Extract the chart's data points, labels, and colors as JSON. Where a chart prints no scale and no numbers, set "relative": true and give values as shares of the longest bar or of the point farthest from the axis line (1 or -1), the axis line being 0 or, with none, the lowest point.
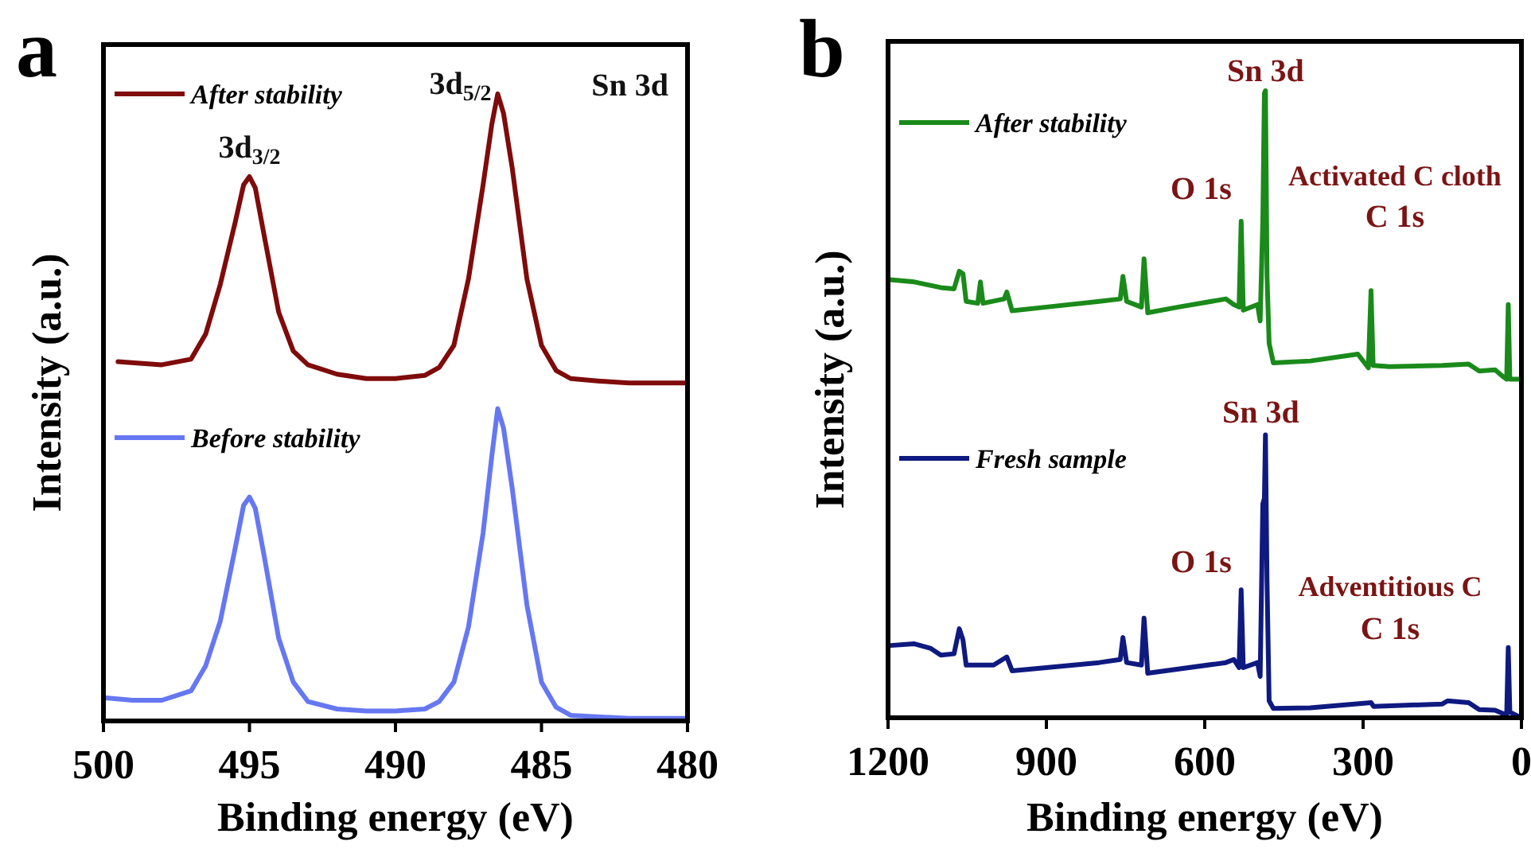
{
  "chart_data": [
    {
      "type": "line",
      "title": "a",
      "xlabel": "Binding energy (eV)",
      "ylabel": "Intensity (a.u.)",
      "relative": true,
      "legend": "left",
      "xlim": [
        500,
        480
      ],
      "xticks": [
        500,
        495,
        490,
        485,
        480
      ],
      "series": [
        {
          "name": "After stability",
          "color": "#7f0b0b",
          "x": [
            499.5,
            498,
            497,
            496.5,
            496,
            495.5,
            495.2,
            495,
            494.8,
            494.5,
            494,
            493.5,
            493,
            492,
            491,
            490,
            489,
            488.5,
            488,
            487.5,
            487,
            486.7,
            486.5,
            486.3,
            486,
            485.5,
            485,
            484.5,
            484,
            483,
            482,
            480
          ],
          "values": [
            0.573,
            0.568,
            0.577,
            0.617,
            0.696,
            0.793,
            0.855,
            0.868,
            0.85,
            0.775,
            0.652,
            0.59,
            0.568,
            0.553,
            0.546,
            0.546,
            0.551,
            0.564,
            0.599,
            0.705,
            0.855,
            0.952,
            1.0,
            0.969,
            0.881,
            0.705,
            0.599,
            0.559,
            0.546,
            0.542,
            0.539,
            0.539
          ]
        },
        {
          "name": "Before stability",
          "color": "#6677f2",
          "x": [
            500,
            499,
            498,
            497,
            496.5,
            496,
            495.5,
            495.2,
            495,
            494.8,
            494.5,
            494,
            493.5,
            493,
            492,
            491,
            490,
            489,
            488.5,
            488,
            487.5,
            487,
            486.7,
            486.5,
            486.3,
            486,
            485.5,
            485,
            484.5,
            484,
            482,
            480
          ],
          "values": [
            0.037,
            0.033,
            0.033,
            0.048,
            0.088,
            0.159,
            0.273,
            0.344,
            0.357,
            0.339,
            0.264,
            0.132,
            0.062,
            0.031,
            0.019,
            0.016,
            0.016,
            0.019,
            0.031,
            0.062,
            0.15,
            0.3,
            0.423,
            0.498,
            0.467,
            0.37,
            0.185,
            0.062,
            0.022,
            0.009,
            0.004,
            0.004
          ]
        }
      ],
      "annotations": [
        {
          "text": "3d$_{3/2}$",
          "x": 495,
          "y": 0.868
        },
        {
          "text": "3d$_{5/2}$",
          "x": 486.5,
          "y": 1.0
        },
        "Sn 3d"
      ]
    },
    {
      "type": "line",
      "title": "b",
      "xlabel": "Binding energy (eV)",
      "ylabel": "Intensity (a.u.)",
      "relative": true,
      "legend": "left",
      "xlim": [
        1200,
        0
      ],
      "xticks": [
        1200,
        900,
        600,
        300,
        0
      ],
      "series": [
        {
          "name": "After stability",
          "color": "#1a8a1a",
          "x": [
            1200,
            1150,
            1100,
            1075,
            1065,
            1058,
            1052,
            1030,
            1025,
            1020,
            980,
            975,
            965,
            900,
            800,
            760,
            755,
            748,
            720,
            715,
            708,
            650,
            560,
            545,
            535,
            531,
            527,
            500,
            495,
            490,
            487,
            485,
            482,
            478,
            470,
            400,
            310,
            290,
            285,
            281,
            250,
            150,
            100,
            80,
            50,
            35,
            28,
            25,
            22,
            10,
            0
          ],
          "values": [
            0.699,
            0.695,
            0.686,
            0.684,
            0.712,
            0.708,
            0.664,
            0.661,
            0.695,
            0.661,
            0.668,
            0.679,
            0.649,
            0.655,
            0.664,
            0.668,
            0.704,
            0.664,
            0.655,
            0.732,
            0.646,
            0.655,
            0.668,
            0.659,
            0.655,
            0.792,
            0.65,
            0.659,
            0.633,
            0.792,
            0.996,
            1.0,
            0.704,
            0.597,
            0.566,
            0.569,
            0.58,
            0.558,
            0.681,
            0.562,
            0.56,
            0.562,
            0.564,
            0.553,
            0.555,
            0.544,
            0.54,
            0.659,
            0.54,
            0.54,
            0.54
          ]
        },
        {
          "name": "Fresh sample",
          "color": "#0f1a80",
          "x": [
            1200,
            1150,
            1120,
            1100,
            1075,
            1065,
            1058,
            1052,
            1000,
            975,
            965,
            900,
            800,
            760,
            755,
            748,
            720,
            715,
            708,
            560,
            545,
            535,
            531,
            527,
            500,
            495,
            490,
            487,
            485,
            482,
            478,
            470,
            400,
            285,
            280,
            150,
            140,
            100,
            80,
            50,
            28,
            25,
            22,
            5,
            0
          ],
          "values": [
            0.115,
            0.118,
            0.111,
            0.1,
            0.102,
            0.142,
            0.124,
            0.084,
            0.084,
            0.097,
            0.075,
            0.08,
            0.088,
            0.093,
            0.128,
            0.088,
            0.084,
            0.159,
            0.071,
            0.088,
            0.093,
            0.08,
            0.204,
            0.08,
            0.088,
            0.066,
            0.341,
            0.35,
            0.451,
            0.217,
            0.027,
            0.015,
            0.016,
            0.024,
            0.018,
            0.022,
            0.027,
            0.024,
            0.013,
            0.012,
            0.004,
            0.112,
            0.009,
            0.002,
            0.0
          ]
        }
      ],
      "annotations": [
        {
          "text": "Sn 3d",
          "x": 485,
          "y": 1.0
        },
        {
          "text": "O 1s",
          "x": 531,
          "y": 0.792
        },
        {
          "text": "Activated C cloth\nC 1s",
          "x": 285,
          "y": 0.681
        },
        {
          "text": "Sn 3d",
          "x": 485,
          "y": 0.451
        },
        {
          "text": "O 1s",
          "x": 531,
          "y": 0.204
        },
        {
          "text": "Adventitious C\nC 1s",
          "x": 285,
          "y": 0.024
        }
      ]
    }
  ]
}
